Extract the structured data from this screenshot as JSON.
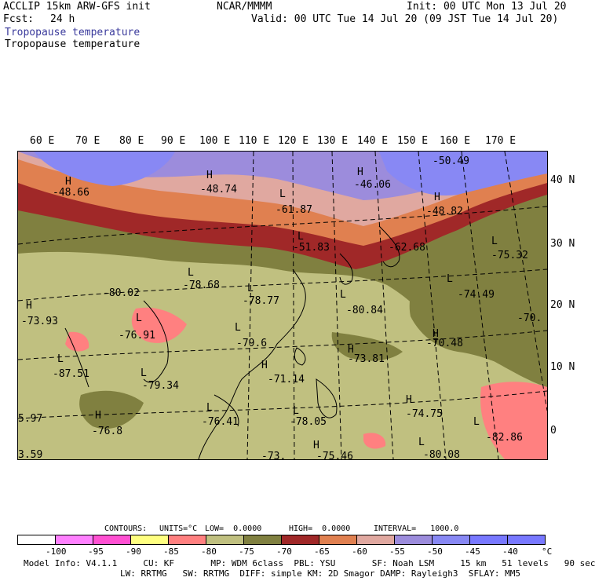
{
  "header": {
    "model_line": "ACCLIP 15km ARW-GFS init",
    "fcst_label": "Fcst:",
    "fcst_value": "24 h",
    "org": "NCAR/MMMM",
    "init": "Init: 00 UTC Mon 13 Jul 20",
    "valid": "Valid: 00 UTC Tue 14 Jul 20 (09 JST Tue 14 Jul 20)",
    "field1": "Tropopause temperature",
    "field2": "Tropopause temperature"
  },
  "map": {
    "lon_labels": [
      "60 E",
      "70 E",
      "80 E",
      "90 E",
      "100 E",
      "110 E",
      "120 E",
      "130 E",
      "140 E",
      "150 E",
      "160 E",
      "170 E"
    ],
    "lat_labels": [
      "40 N",
      "30 N",
      "20 N",
      "10 N",
      "0"
    ],
    "extrema": [
      {
        "type": "H",
        "value": "-48.66"
      },
      {
        "type": "H",
        "value": "-48.74"
      },
      {
        "type": "L",
        "value": "-61.87"
      },
      {
        "type": "H",
        "value": "-46.06"
      },
      {
        "type": "H",
        "value": "-50.49"
      },
      {
        "type": "H",
        "value": "-48.82"
      },
      {
        "type": "L",
        "value": "-51.83"
      },
      {
        "type": "L",
        "value": "-62.68"
      },
      {
        "type": "L",
        "value": "-75.32"
      },
      {
        "type": "L",
        "value": "-78.68"
      },
      {
        "type": "L",
        "value": "-80.02"
      },
      {
        "type": "L",
        "value": "-78.77"
      },
      {
        "type": "L",
        "value": "-80.84"
      },
      {
        "type": "L",
        "value": "-74.49"
      },
      {
        "type": "H",
        "value": "-73.93"
      },
      {
        "type": "L",
        "value": "-76.91"
      },
      {
        "type": "L",
        "value": "-79.6"
      },
      {
        "type": "H",
        "value": "-70.48"
      },
      {
        "type": "L",
        "value": "-70."
      },
      {
        "type": "L",
        "value": "-87.51"
      },
      {
        "type": "H",
        "value": "-73.81"
      },
      {
        "type": "H",
        "value": "-71.14"
      },
      {
        "type": "L",
        "value": "-79.34"
      },
      {
        "type": "H",
        "value": "5.97"
      },
      {
        "type": "H",
        "value": "-76.8"
      },
      {
        "type": "L",
        "value": "-76.41"
      },
      {
        "type": "L",
        "value": "-78.05"
      },
      {
        "type": "H",
        "value": "-74.75"
      },
      {
        "type": "L",
        "value": "-82.86"
      },
      {
        "type": "L",
        "value": "3.59"
      },
      {
        "type": "H",
        "value": "-73."
      },
      {
        "type": "H",
        "value": "-75.46"
      },
      {
        "type": "L",
        "value": "-80.08"
      }
    ]
  },
  "contour_info": {
    "contours": "CONTOURS:",
    "units": "UNITS=°C",
    "low": "LOW=  0.0000",
    "high": "HIGH=  0.0000",
    "interval": "INTERVAL=   1000.0"
  },
  "colorbar": {
    "colors": [
      "#ffffff",
      "#ff80ff",
      "#ff50d2",
      "#ffff80",
      "#ff8080",
      "#c0c080",
      "#808040",
      "#a02828",
      "#e08050",
      "#e0a8a0",
      "#9c8cdc",
      "#8888f4",
      "#7878ff"
    ],
    "labels": [
      "-100",
      "-95",
      "-90",
      "-85",
      "-80",
      "-75",
      "-70",
      "-65",
      "-60",
      "-55",
      "-50",
      "-45",
      "-40",
      "°C"
    ]
  },
  "footer": {
    "line1": "Model Info: V4.1.1     CU: KF       MP: WDM 6class  PBL: YSU       SF: Noah LSM     15 km   51 levels   90 sec",
    "line2": "LW: RRTMG   SW: RRTMG  DIFF: simple KM: 2D Smagor DAMP: Rayleigh3  SFLAY: MM5"
  }
}
